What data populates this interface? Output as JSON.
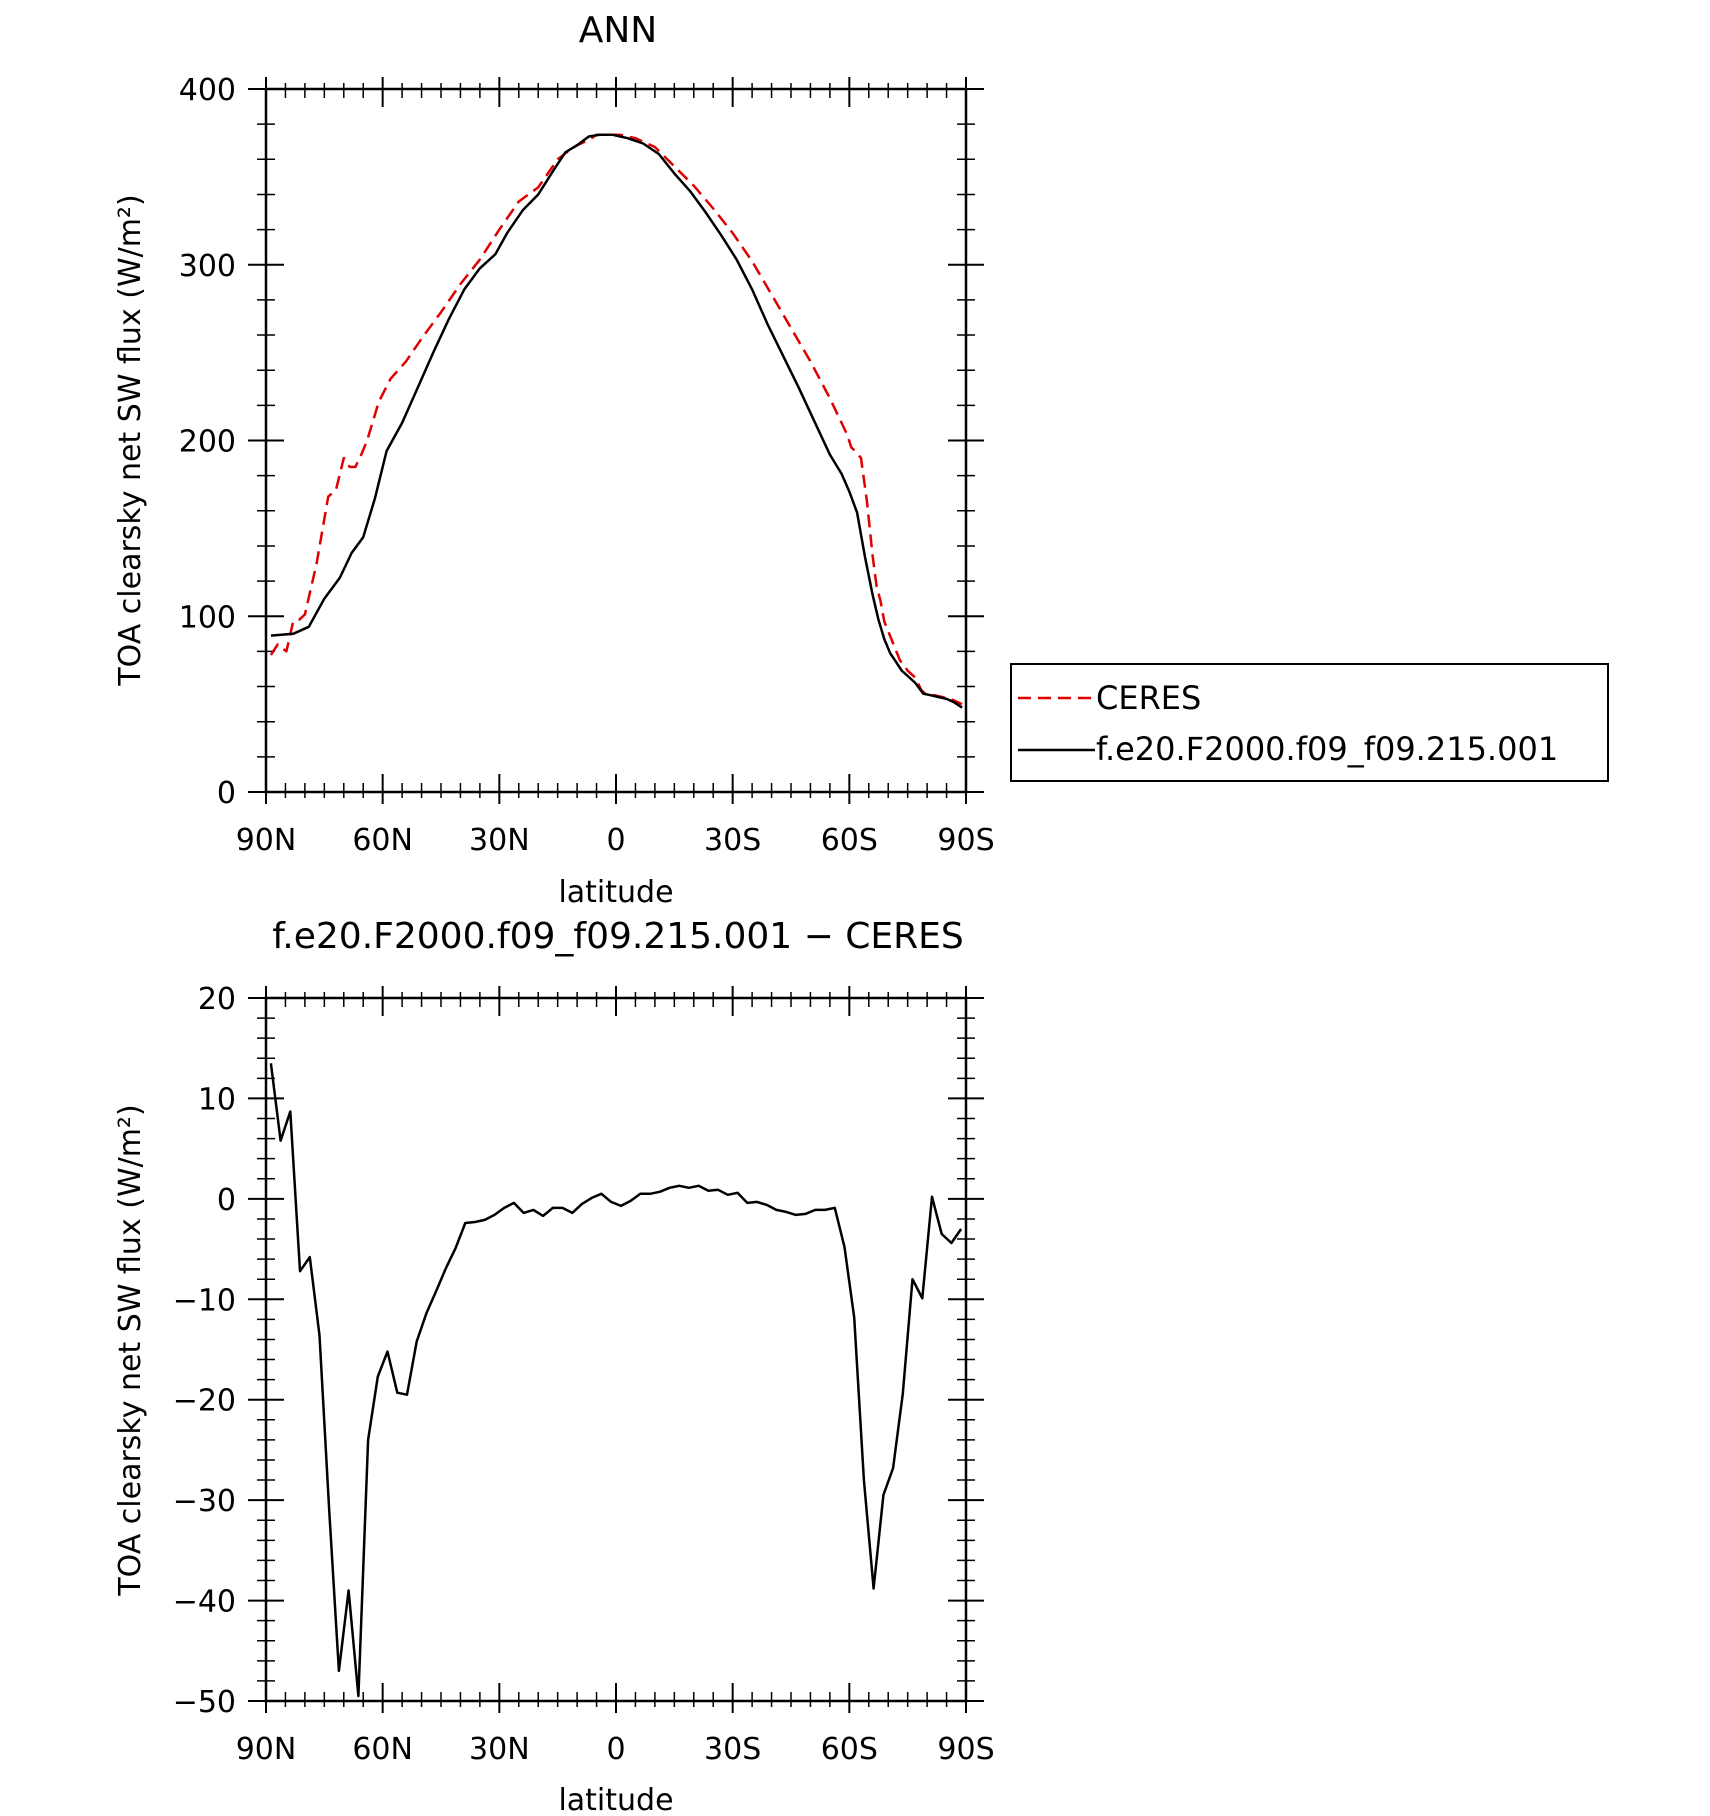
{
  "chart_data": [
    {
      "type": "line",
      "title": "ANN",
      "xlabel": "latitude",
      "ylabel": "TOA clearsky net SW flux (W/m²)",
      "xlim": [
        90,
        -90
      ],
      "ylim": [
        0,
        400
      ],
      "x_ticks": [
        90,
        60,
        30,
        0,
        -30,
        -60,
        -90
      ],
      "x_tick_labels": [
        "90N",
        "60N",
        "30N",
        "0",
        "30S",
        "60S",
        "90S"
      ],
      "y_ticks": [
        0,
        100,
        200,
        300,
        400
      ],
      "y_tick_labels": [
        "0",
        "100",
        "200",
        "300",
        "400"
      ],
      "grid": false,
      "legend_position": "right",
      "series": [
        {
          "name": "CERES",
          "color": "#e00000",
          "dash": true,
          "x": [
            88.75,
            87,
            84.75,
            83,
            81.5,
            80,
            77,
            74,
            72,
            70,
            68.5,
            67,
            65.5,
            64,
            61,
            58,
            54,
            50,
            45,
            40,
            35,
            30,
            25,
            20,
            15,
            12,
            10,
            7,
            5,
            3,
            1,
            -1,
            -5,
            -10,
            -15,
            -20,
            -25,
            -30,
            -35,
            -40,
            -45,
            -50,
            -55,
            -58,
            -59.5,
            -60.5,
            -61.5,
            -63,
            -64.5,
            -66,
            -67,
            -68,
            -69,
            -71,
            -73,
            -75,
            -77,
            -78.5,
            -80,
            -82,
            -84,
            -86,
            -89
          ],
          "y": [
            78,
            84,
            80,
            97,
            98,
            101,
            130,
            168,
            172,
            190,
            185,
            185,
            192,
            200,
            222,
            235,
            245,
            258,
            273,
            289,
            303,
            320,
            336,
            344,
            360,
            365,
            368,
            371,
            374,
            374,
            374,
            374,
            372,
            367,
            356,
            345,
            332,
            318,
            302,
            283,
            264,
            245,
            224,
            210,
            203,
            196,
            194,
            190,
            166,
            134,
            117,
            109,
            97,
            86,
            75,
            69,
            65,
            58,
            55,
            55,
            54,
            53,
            50
          ]
        },
        {
          "name": "f.e20.F2000.f09_f09.215.001",
          "color": "#000000",
          "dash": false,
          "x": [
            88.75,
            83,
            79,
            75,
            71,
            68,
            65,
            62,
            59,
            55,
            51,
            47,
            43,
            39,
            35,
            31,
            28,
            24,
            20,
            16,
            13,
            10,
            7,
            4,
            1,
            -3,
            -7,
            -11,
            -15,
            -19,
            -23,
            -27,
            -31,
            -35,
            -39,
            -43,
            -47,
            -51,
            -55,
            -58,
            -60,
            -62,
            -64,
            -66,
            -67.5,
            -69,
            -70.5,
            -72,
            -73.5,
            -75,
            -77,
            -79,
            -81,
            -83,
            -85,
            -87,
            -89
          ],
          "y": [
            89,
            90,
            94,
            110,
            122,
            136,
            145,
            167,
            194,
            210,
            230,
            250,
            269,
            286,
            298,
            306,
            318,
            331,
            340,
            354,
            364,
            368,
            373,
            374,
            374,
            372,
            369,
            363,
            352,
            342,
            330,
            317,
            303,
            286,
            266,
            248,
            230,
            211,
            192,
            181,
            171,
            159,
            134,
            112,
            98,
            87,
            79,
            74,
            69,
            66,
            62,
            56,
            55,
            54,
            53,
            51,
            48
          ]
        }
      ]
    },
    {
      "type": "line",
      "title": "f.e20.F2000.f09_f09.215.001 − CERES",
      "xlabel": "latitude",
      "ylabel": "TOA clearsky net SW flux (W/m²)",
      "xlim": [
        90,
        -90
      ],
      "ylim": [
        -50,
        20
      ],
      "x_ticks": [
        90,
        60,
        30,
        0,
        -30,
        -60,
        -90
      ],
      "x_tick_labels": [
        "90N",
        "60N",
        "30N",
        "0",
        "30S",
        "60S",
        "90S"
      ],
      "y_ticks": [
        -50,
        -40,
        -30,
        -20,
        -10,
        0,
        10,
        20
      ],
      "y_tick_labels": [
        "−50",
        "−40",
        "−30",
        "−20",
        "−10",
        "0",
        "10",
        "20"
      ],
      "grid": false,
      "series": [
        {
          "color": "#000000",
          "dash": false,
          "x": [
            88.75,
            86.25,
            83.75,
            81.25,
            78.75,
            76.25,
            73.75,
            71.25,
            68.75,
            66.25,
            63.75,
            61.25,
            58.75,
            56.25,
            53.75,
            51.25,
            48.75,
            46.25,
            43.75,
            41.25,
            38.75,
            36.25,
            33.75,
            31.25,
            28.75,
            26.25,
            23.75,
            21.25,
            18.75,
            16.25,
            13.75,
            11.25,
            8.75,
            6.25,
            3.75,
            1.25,
            -1.25,
            -3.75,
            -6.25,
            -8.75,
            -11.25,
            -13.75,
            -16.25,
            -18.75,
            -21.25,
            -23.75,
            -26.25,
            -28.75,
            -31.25,
            -33.75,
            -36.25,
            -38.75,
            -41.25,
            -43.75,
            -46.25,
            -48.75,
            -51.25,
            -53.75,
            -56.25,
            -58.75,
            -61.25,
            -63.75,
            -66.25,
            -68.75,
            -71.25,
            -73.75,
            -76.25,
            -78.75,
            -81.25,
            -83.75,
            -86.25,
            -88.75
          ],
          "y": [
            13.5,
            5.8,
            8.7,
            -7.2,
            -5.8,
            -13.6,
            -31,
            -47,
            -39,
            -49.5,
            -24,
            -17.7,
            -15.2,
            -19.3,
            -19.5,
            -14.2,
            -11.4,
            -9.2,
            -6.9,
            -4.9,
            -2.4,
            -2.3,
            -2.1,
            -1.6,
            -0.9,
            -0.4,
            -1.4,
            -1.1,
            -1.7,
            -0.9,
            -0.9,
            -1.4,
            -0.5,
            0.1,
            0.5,
            -0.3,
            -0.7,
            -0.2,
            0.5,
            0.5,
            0.7,
            1.1,
            1.3,
            1.1,
            1.3,
            0.8,
            0.9,
            0.4,
            0.6,
            -0.4,
            -0.3,
            -0.6,
            -1.1,
            -1.3,
            -1.6,
            -1.5,
            -1.1,
            -1.1,
            -0.9,
            -4.8,
            -11.8,
            -28,
            -38.8,
            -29.5,
            -26.8,
            -19.4,
            -8,
            -9.9,
            0.2,
            -3.5,
            -4.4,
            -3.0
          ]
        }
      ]
    }
  ]
}
